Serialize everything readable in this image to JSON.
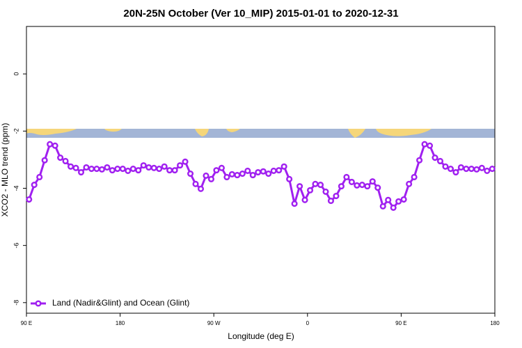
{
  "chart_data": {
    "type": "line",
    "title": "20N-25N October (Ver 10_MIP)   2015-01-01 to 2020-12-31",
    "x_label": "Longitude (deg E)",
    "y_label": "XCO2 - MLO trend (ppm)",
    "xlim": [
      90,
      540
    ],
    "ylim": [
      1.66,
      -8.37
    ],
    "xticks": [
      {
        "value": 90,
        "label": "90 E"
      },
      {
        "value": 180,
        "label": "180"
      },
      {
        "value": 270,
        "label": "90 W"
      },
      {
        "value": 360,
        "label": "0"
      },
      {
        "value": 450,
        "label": "90 E"
      },
      {
        "value": 540,
        "label": "180"
      }
    ],
    "yticks": [
      0,
      -2,
      -4,
      -6,
      -8
    ],
    "legend": "bottom-left",
    "x": [
      92.5,
      97.5,
      102.5,
      107.5,
      112.5,
      117.5,
      122.5,
      127.5,
      132.5,
      137.5,
      142.5,
      147.5,
      152.5,
      157.5,
      162.5,
      167.5,
      172.5,
      177.5,
      182.5,
      187.5,
      192.5,
      197.5,
      202.5,
      207.5,
      212.5,
      217.5,
      222.5,
      227.5,
      232.5,
      237.5,
      242.5,
      247.5,
      252.5,
      257.5,
      262.5,
      267.5,
      272.5,
      277.5,
      282.5,
      287.5,
      292.5,
      297.5,
      302.5,
      307.5,
      312.5,
      317.5,
      322.5,
      327.5,
      332.5,
      337.5,
      342.5,
      347.5,
      352.5,
      357.5,
      362.5,
      367.5,
      372.5,
      377.5,
      382.5,
      387.5,
      392.5,
      397.5,
      402.5,
      407.5,
      412.5,
      417.5,
      422.5,
      427.5,
      432.5,
      437.5,
      442.5,
      447.5,
      452.5,
      457.5,
      462.5,
      467.5,
      472.5,
      477.5,
      482.5,
      487.5,
      492.5,
      497.5,
      502.5,
      507.5,
      512.5,
      517.5,
      522.5,
      527.5,
      532.5,
      537.5
    ],
    "series": [
      {
        "name": "Land (Nadir&Glint) and Ocean (Glint)",
        "color": "#a020f0",
        "values": [
          -4.39,
          -3.88,
          -3.61,
          -3.02,
          -2.46,
          -2.51,
          -2.93,
          -3.05,
          -3.24,
          -3.29,
          -3.44,
          -3.27,
          -3.32,
          -3.32,
          -3.34,
          -3.27,
          -3.37,
          -3.32,
          -3.32,
          -3.39,
          -3.32,
          -3.37,
          -3.2,
          -3.27,
          -3.29,
          -3.32,
          -3.24,
          -3.37,
          -3.37,
          -3.2,
          -3.07,
          -3.49,
          -3.85,
          -4.02,
          -3.56,
          -3.68,
          -3.37,
          -3.29,
          -3.61,
          -3.51,
          -3.54,
          -3.49,
          -3.39,
          -3.54,
          -3.44,
          -3.41,
          -3.49,
          -3.39,
          -3.37,
          -3.24,
          -3.68,
          -4.54,
          -3.93,
          -4.41,
          -4.07,
          -3.85,
          -3.88,
          -4.12,
          -4.44,
          -4.27,
          -3.93,
          -3.61,
          -3.78,
          -3.9,
          -3.88,
          -3.93,
          -3.76,
          -3.98,
          -4.63,
          -4.41,
          -4.68,
          -4.46,
          -4.39,
          -3.85,
          -3.61,
          -3.02,
          -2.46,
          -2.51,
          -2.93,
          -3.05,
          -3.24,
          -3.32,
          -3.44,
          -3.27,
          -3.32,
          -3.32,
          -3.34,
          -3.29,
          -3.39,
          -3.32
        ]
      }
    ]
  }
}
